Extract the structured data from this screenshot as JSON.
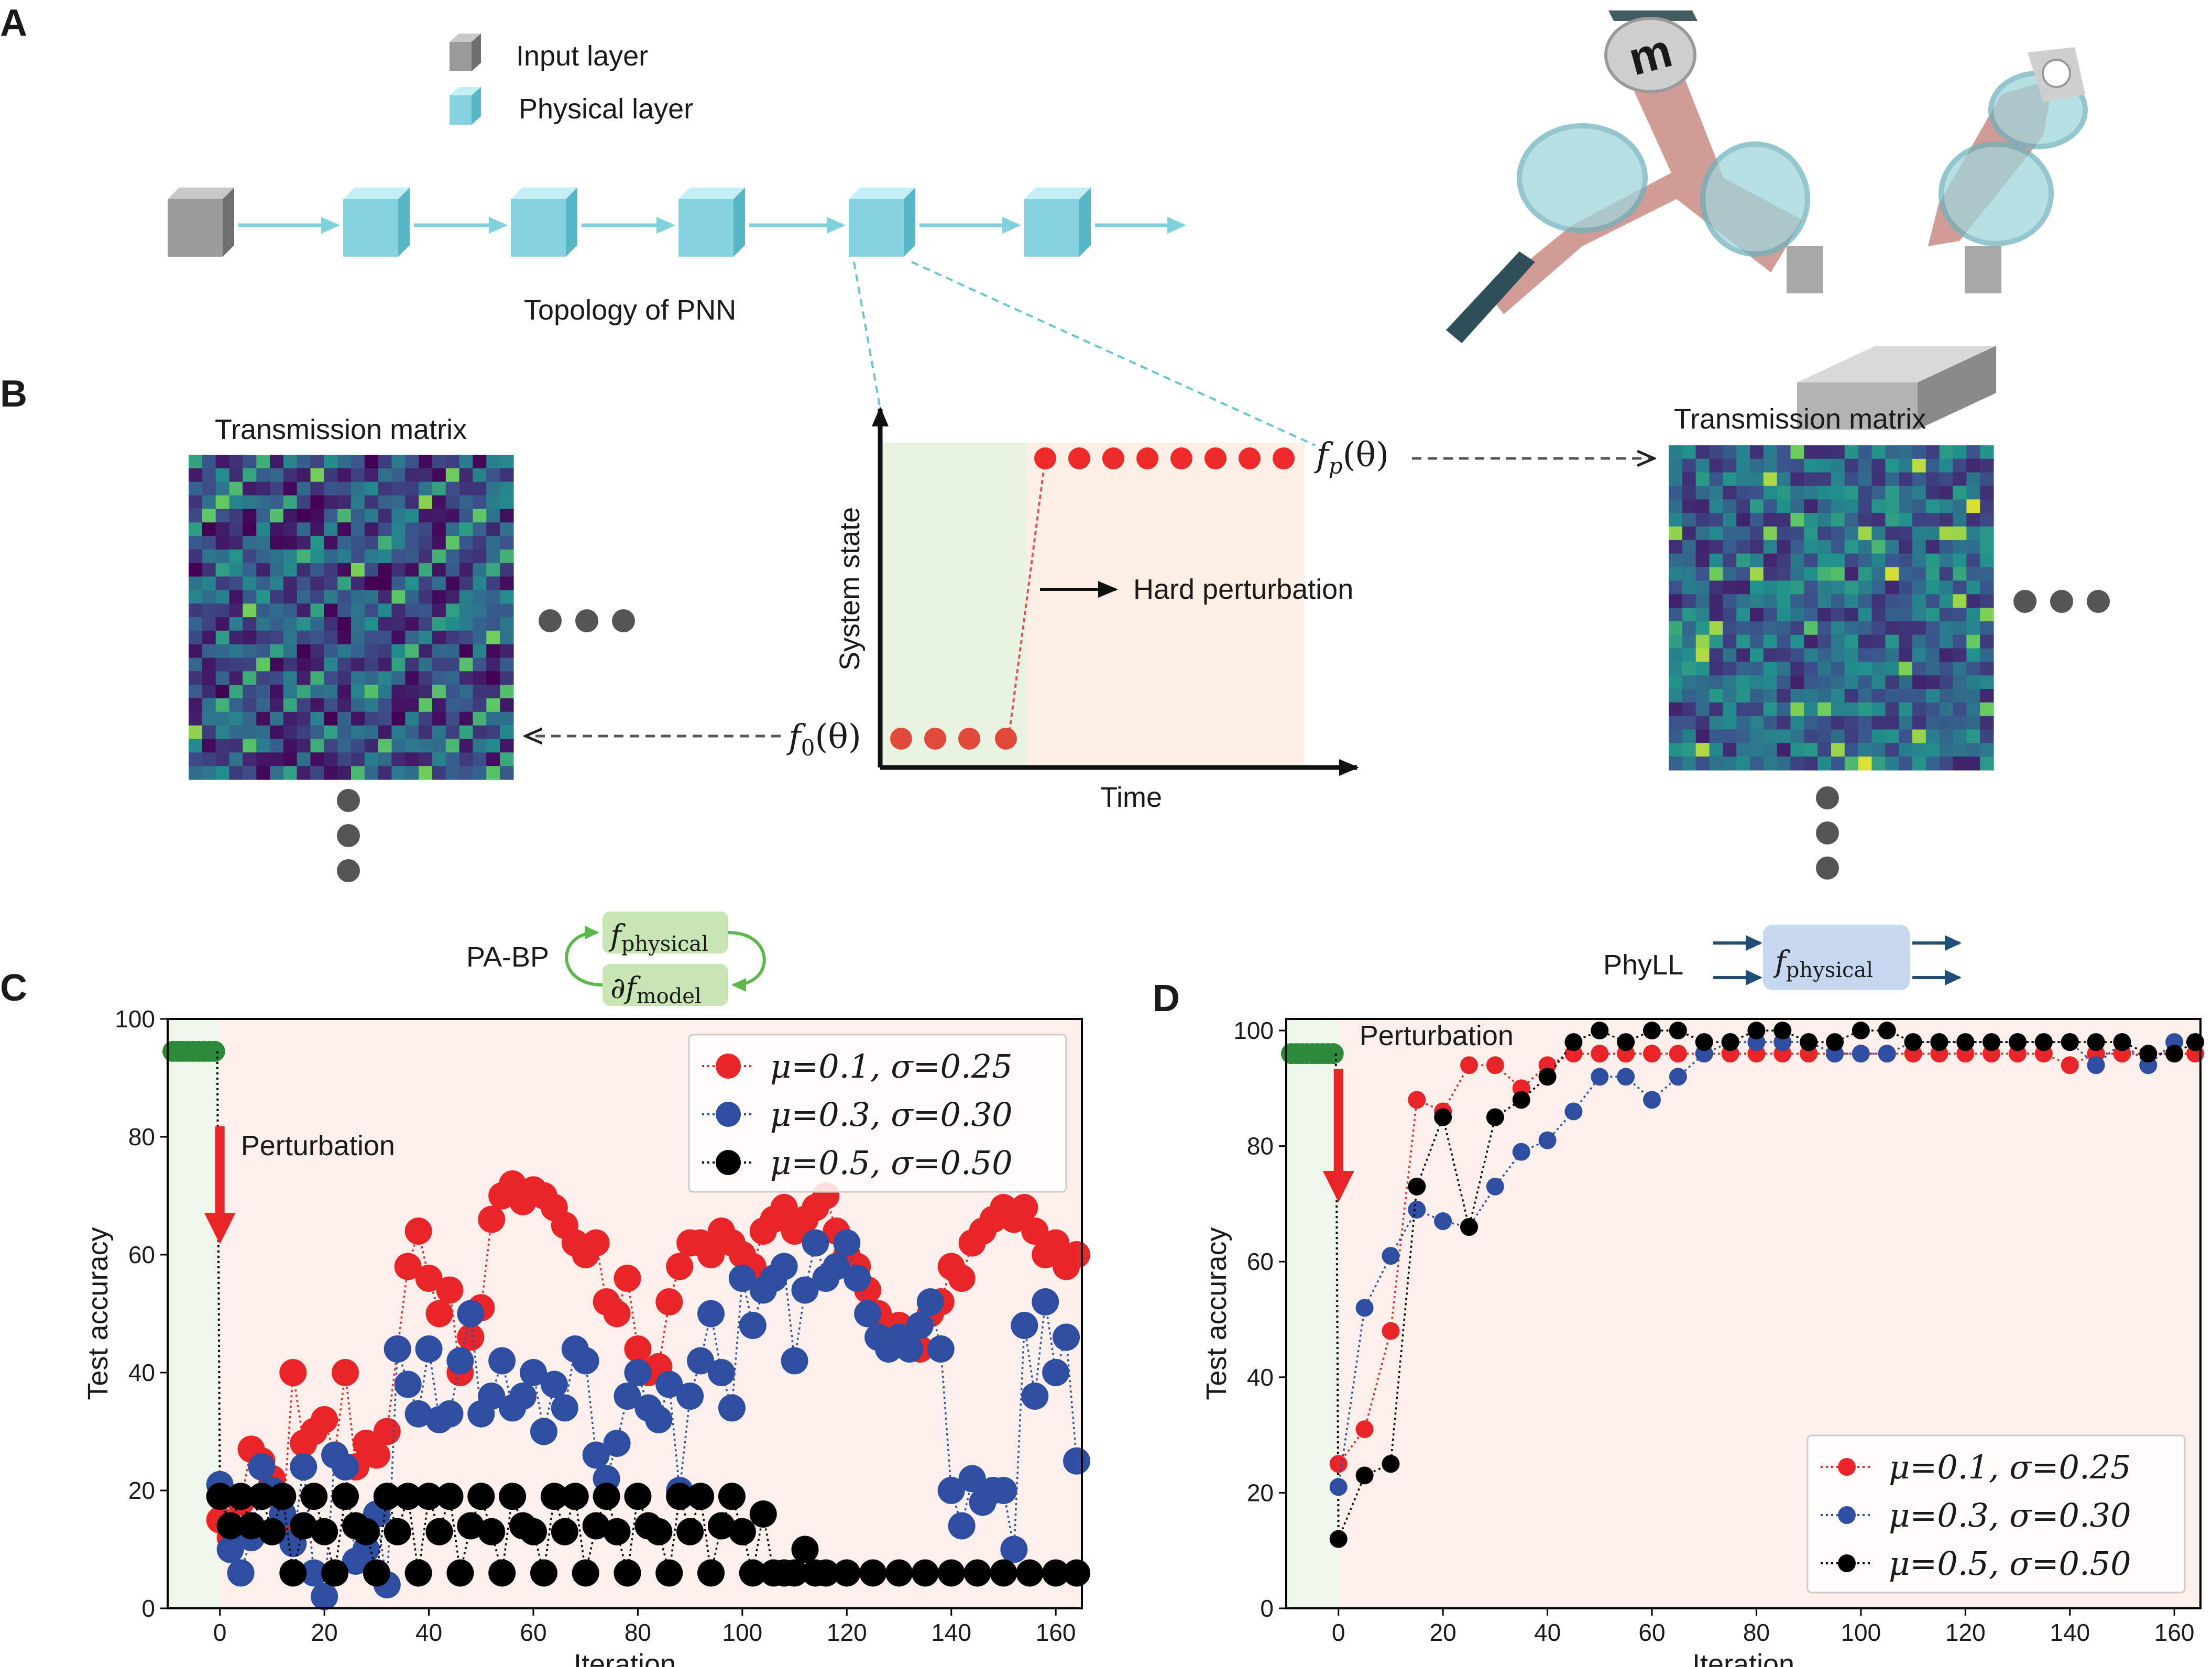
{
  "panel_labels": [
    "A",
    "B",
    "C",
    "D"
  ],
  "legend_a": {
    "input_label": "Input layer",
    "physical_label": "Physical layer"
  },
  "topology_label": "Topology of PNN",
  "panel_b": {
    "left_title": "Transmission matrix",
    "right_title": "Transmission matrix",
    "ylabel": "System state",
    "xlabel": "Time",
    "arrow_label": "Hard perturbation",
    "f0_label": {
      "base": "f",
      "sub": "0",
      "arg": "(θ)"
    },
    "fp_label": {
      "base": "f",
      "sub": "p",
      "arg": "(θ)"
    }
  },
  "method_c": {
    "name": "PA-BP",
    "top_fn": "f",
    "top_sub": "physical",
    "bottom_fn": "∂f",
    "bottom_sub": "model"
  },
  "method_d": {
    "name": "PhyLL",
    "fn": "f",
    "sub": "physical"
  },
  "colors": {
    "red": "#e8262a",
    "blue": "#2e4fa0",
    "black": "#000000",
    "green": "#2a8a3a",
    "bg": "#fdf0eb",
    "pre": "#eef7ea",
    "cyan": "#7fd1dc"
  },
  "chart_data": [
    {
      "type": "scatter",
      "panel": "C",
      "xlabel": "Iteration",
      "ylabel": "Test accuracy",
      "xlim": [
        -10,
        165
      ],
      "ylim": [
        0,
        100
      ],
      "xticks": [
        0,
        20,
        40,
        60,
        80,
        100,
        120,
        140,
        160
      ],
      "yticks": [
        0,
        20,
        40,
        60,
        80,
        100
      ],
      "annotation": "Perturbation",
      "legend_position": "top-right",
      "pre_perturbation": {
        "x": [
          -9,
          -8,
          -7,
          -6,
          -5,
          -4,
          -3,
          -2,
          -1
        ],
        "y": [
          94.5,
          94.5,
          94.5,
          94.5,
          94.5,
          94.5,
          94.5,
          94.5,
          94.5
        ]
      },
      "series": [
        {
          "name": "μ=0.1, σ=0.25",
          "color": "red",
          "x": [
            0,
            2,
            4,
            6,
            8,
            10,
            12,
            14,
            16,
            18,
            20,
            22,
            24,
            26,
            28,
            30,
            32,
            34,
            36,
            38,
            40,
            42,
            44,
            46,
            48,
            50,
            52,
            54,
            56,
            58,
            60,
            62,
            64,
            66,
            68,
            70,
            72,
            74,
            76,
            78,
            80,
            82,
            84,
            86,
            88,
            90,
            92,
            94,
            96,
            98,
            100,
            102,
            104,
            106,
            108,
            110,
            112,
            114,
            116,
            118,
            120,
            122,
            124,
            126,
            128,
            130,
            132,
            134,
            136,
            138,
            140,
            142,
            144,
            146,
            148,
            150,
            152,
            154,
            156,
            158,
            160,
            162,
            164
          ],
          "y": [
            15,
            12,
            18,
            27,
            25,
            22,
            14,
            40,
            28,
            30,
            32,
            26,
            40,
            24,
            28,
            26,
            30,
            44,
            58,
            64,
            56,
            50,
            54,
            40,
            46,
            51,
            66,
            70,
            72,
            69,
            71,
            70,
            68,
            65,
            62,
            60,
            62,
            52,
            50,
            56,
            44,
            40,
            41,
            52,
            58,
            62,
            62,
            60,
            64,
            62,
            60,
            58,
            64,
            66,
            68,
            64,
            66,
            68,
            70,
            64,
            60,
            58,
            54,
            50,
            46,
            48,
            46,
            44,
            50,
            52,
            58,
            56,
            62,
            64,
            66,
            68,
            66,
            68,
            64,
            60,
            62,
            58,
            60
          ]
        },
        {
          "name": "μ=0.3, σ=0.30",
          "color": "blue",
          "x": [
            0,
            2,
            4,
            6,
            8,
            10,
            12,
            14,
            16,
            18,
            20,
            22,
            24,
            26,
            28,
            30,
            32,
            34,
            36,
            38,
            40,
            42,
            44,
            46,
            48,
            50,
            52,
            54,
            56,
            58,
            60,
            62,
            64,
            66,
            68,
            70,
            72,
            74,
            76,
            78,
            80,
            82,
            84,
            86,
            88,
            90,
            92,
            94,
            96,
            98,
            100,
            102,
            104,
            106,
            108,
            110,
            112,
            114,
            116,
            118,
            120,
            122,
            124,
            126,
            128,
            130,
            132,
            134,
            136,
            138,
            140,
            142,
            144,
            146,
            148,
            150,
            152,
            154,
            156,
            158,
            160,
            162,
            164
          ],
          "y": [
            21,
            10,
            6,
            12,
            24,
            20,
            16,
            11,
            24,
            6,
            2,
            26,
            24,
            8,
            10,
            16,
            4,
            44,
            38,
            33,
            44,
            32,
            33,
            42,
            50,
            33,
            36,
            42,
            34,
            36,
            40,
            30,
            38,
            34,
            44,
            42,
            26,
            22,
            28,
            36,
            40,
            34,
            32,
            38,
            20,
            36,
            42,
            50,
            40,
            34,
            56,
            48,
            54,
            56,
            58,
            42,
            54,
            62,
            56,
            58,
            62,
            56,
            50,
            46,
            44,
            46,
            44,
            48,
            52,
            44,
            20,
            14,
            22,
            18,
            20,
            20,
            10,
            48,
            36,
            52,
            40,
            46,
            25
          ]
        },
        {
          "name": "μ=0.5, σ=0.50",
          "color": "black",
          "x": [
            0,
            2,
            4,
            6,
            8,
            10,
            12,
            14,
            16,
            18,
            20,
            22,
            24,
            26,
            28,
            30,
            32,
            34,
            36,
            38,
            40,
            42,
            44,
            46,
            48,
            50,
            52,
            54,
            56,
            58,
            60,
            62,
            64,
            66,
            68,
            70,
            72,
            74,
            76,
            78,
            80,
            82,
            84,
            86,
            88,
            90,
            92,
            94,
            96,
            98,
            100,
            102,
            104,
            106,
            108,
            110,
            112,
            114,
            116,
            120,
            125,
            130,
            135,
            140,
            145,
            150,
            155,
            160,
            164
          ],
          "y": [
            19,
            14,
            19,
            14,
            19,
            13,
            19,
            6,
            14,
            19,
            13,
            6,
            19,
            14,
            13,
            6,
            19,
            13,
            19,
            6,
            19,
            13,
            19,
            6,
            14,
            19,
            13,
            6,
            19,
            14,
            13,
            6,
            19,
            13,
            19,
            6,
            14,
            19,
            13,
            6,
            19,
            14,
            13,
            6,
            19,
            13,
            19,
            6,
            14,
            19,
            13,
            6,
            16,
            6,
            6,
            6,
            10,
            6,
            6,
            6,
            6,
            6,
            6,
            6,
            6,
            6,
            6,
            6,
            6
          ]
        }
      ]
    },
    {
      "type": "line",
      "panel": "D",
      "xlabel": "Iteration",
      "ylabel": "Test accuracy",
      "xlim": [
        -10,
        165
      ],
      "ylim": [
        0,
        102
      ],
      "xticks": [
        0,
        20,
        40,
        60,
        80,
        100,
        120,
        140,
        160
      ],
      "yticks": [
        0,
        20,
        40,
        60,
        80,
        100
      ],
      "annotation": "Perturbation",
      "legend_position": "bottom-right",
      "pre_perturbation": {
        "x": [
          -9,
          -8,
          -7,
          -6,
          -5,
          -4,
          -3,
          -2,
          -1
        ],
        "y": [
          96,
          96,
          96,
          96,
          96,
          96,
          96,
          96,
          96
        ]
      },
      "series": [
        {
          "name": "μ=0.1, σ=0.25",
          "color": "red",
          "x": [
            0,
            5,
            10,
            15,
            20,
            25,
            30,
            35,
            40,
            45,
            50,
            55,
            60,
            65,
            70,
            75,
            80,
            85,
            90,
            95,
            100,
            105,
            110,
            115,
            120,
            125,
            130,
            135,
            140,
            145,
            150,
            155,
            160,
            164
          ],
          "y": [
            25,
            31,
            48,
            88,
            86,
            94,
            94,
            90,
            94,
            96,
            96,
            96,
            96,
            96,
            96,
            96,
            96,
            96,
            96,
            96,
            96,
            96,
            96,
            96,
            96,
            96,
            96,
            96,
            94,
            96,
            96,
            96,
            96,
            96
          ]
        },
        {
          "name": "μ=0.3, σ=0.30",
          "color": "blue",
          "x": [
            0,
            5,
            10,
            15,
            20,
            25,
            30,
            35,
            40,
            45,
            50,
            55,
            60,
            65,
            70,
            75,
            80,
            85,
            90,
            95,
            100,
            105,
            110,
            115,
            120,
            125,
            130,
            135,
            140,
            145,
            150,
            155,
            160,
            164
          ],
          "y": [
            21,
            52,
            61,
            69,
            67,
            66,
            73,
            79,
            81,
            86,
            92,
            92,
            88,
            92,
            96,
            98,
            98,
            98,
            98,
            96,
            96,
            96,
            98,
            98,
            98,
            98,
            98,
            98,
            98,
            94,
            98,
            94,
            98,
            98
          ]
        },
        {
          "name": "μ=0.5, σ=0.50",
          "color": "black",
          "x": [
            0,
            5,
            10,
            15,
            20,
            25,
            30,
            35,
            40,
            45,
            50,
            55,
            60,
            65,
            70,
            75,
            80,
            85,
            90,
            95,
            100,
            105,
            110,
            115,
            120,
            125,
            130,
            135,
            140,
            145,
            150,
            155,
            160,
            164
          ],
          "y": [
            12,
            23,
            25,
            73,
            85,
            66,
            85,
            88,
            92,
            98,
            100,
            98,
            100,
            100,
            98,
            98,
            100,
            100,
            98,
            98,
            100,
            100,
            98,
            98,
            98,
            98,
            98,
            98,
            98,
            98,
            98,
            96,
            96,
            98
          ]
        }
      ]
    }
  ]
}
